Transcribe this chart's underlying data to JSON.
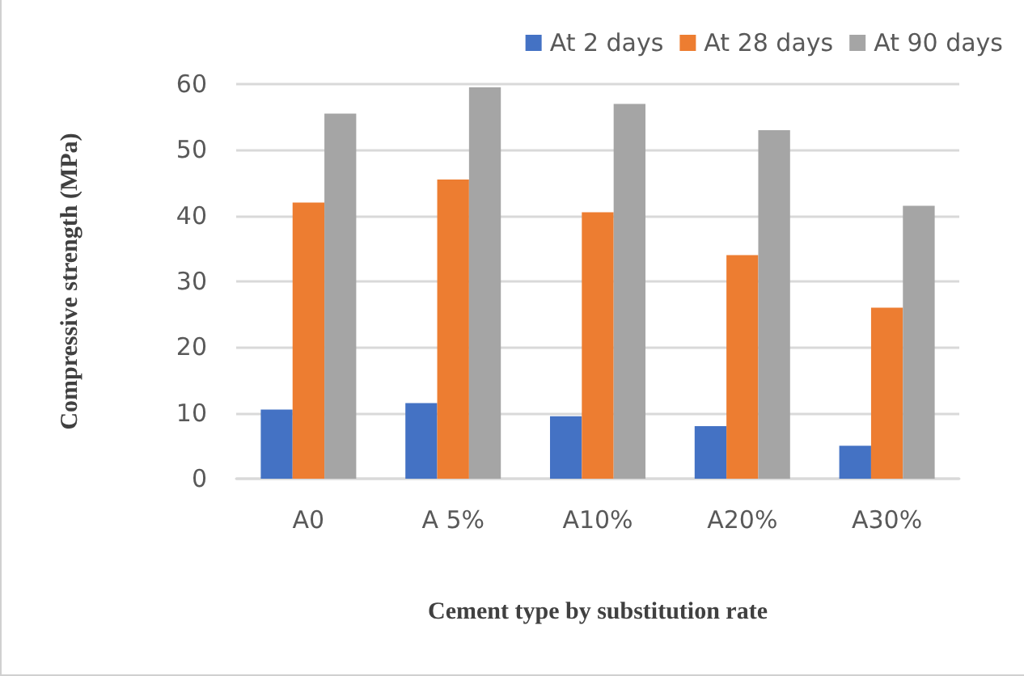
{
  "chart_data": {
    "type": "bar",
    "xlabel": "Cement type by substitution rate",
    "ylabel": "Compressive strength (MPa)",
    "categories": [
      "A0",
      "A 5%",
      "A10%",
      "A20%",
      "A30%"
    ],
    "series": [
      {
        "name": "At 2 days",
        "color": "#4472c4",
        "values": [
          10.5,
          11.5,
          9.5,
          8,
          5
        ]
      },
      {
        "name": "At 28 days",
        "color": "#ed7d31",
        "values": [
          42,
          45.5,
          40.5,
          34,
          26
        ]
      },
      {
        "name": "At 90 days",
        "color": "#a5a5a5",
        "values": [
          55.5,
          59.5,
          57,
          53,
          41.5
        ]
      }
    ],
    "ylim": [
      0,
      60
    ],
    "yticks": [
      0,
      10,
      20,
      30,
      40,
      50,
      60
    ],
    "grid": "y",
    "legend": "top right"
  }
}
